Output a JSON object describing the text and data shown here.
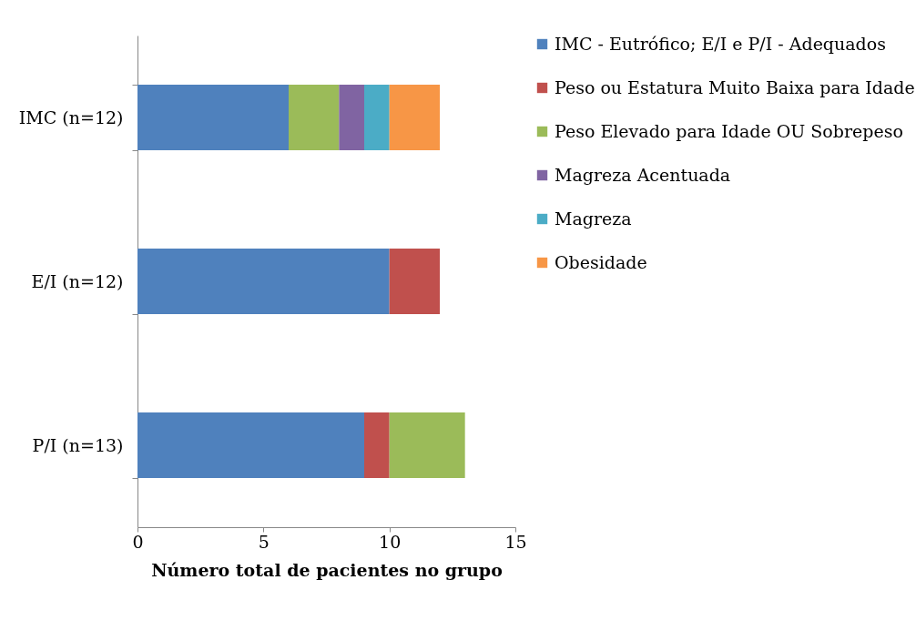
{
  "chart_data": {
    "type": "bar",
    "orientation": "horizontal",
    "stacked": true,
    "xlabel": "Número total de pacientes no grupo",
    "categories": [
      "IMC (n=12)",
      "E/I (n=12)",
      "P/I (n=13)"
    ],
    "series": [
      {
        "name": "IMC - Eutrófico; E/I e P/I - Adequados",
        "color": "#4f81bd",
        "values": [
          6,
          10,
          9
        ]
      },
      {
        "name": "Peso ou Estatura Muito Baixa para Idade",
        "color": "#c0504d",
        "values": [
          null,
          2,
          1
        ]
      },
      {
        "name": "Peso Elevado para Idade OU Sobrepeso",
        "color": "#9bbb59",
        "values": [
          2,
          null,
          3
        ]
      },
      {
        "name": "Magreza Acentuada",
        "color": "#8064a2",
        "values": [
          1,
          null,
          null
        ]
      },
      {
        "name": "Magreza",
        "color": "#4bacc6",
        "values": [
          1,
          null,
          null
        ]
      },
      {
        "name": "Obesidade",
        "color": "#f79646",
        "values": [
          2,
          null,
          null
        ]
      }
    ],
    "xlim": [
      0,
      15
    ],
    "xticks": [
      0,
      5,
      10,
      15
    ],
    "grid": false,
    "legend": "right"
  }
}
